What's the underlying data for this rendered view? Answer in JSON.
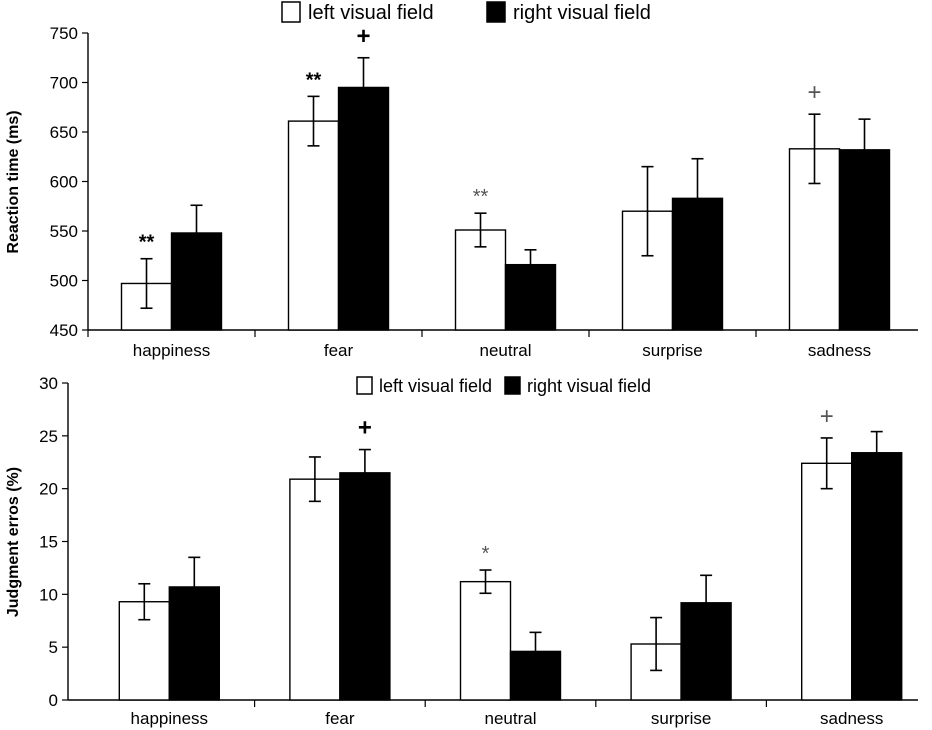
{
  "colors": {
    "left": "#ffffff",
    "right": "#000000",
    "stroke": "#000000",
    "annotation_dark": "#000000",
    "annotation_gray": "#555555"
  },
  "chart_data": [
    {
      "type": "bar",
      "categories": [
        "happiness",
        "fear",
        "neutral",
        "surprise",
        "sadness"
      ],
      "ylabel": "Reaction time (ms)",
      "ylim": [
        450,
        750
      ],
      "yticks": [
        450,
        500,
        550,
        600,
        650,
        700,
        750
      ],
      "legend": "top",
      "series": [
        {
          "name": "left visual field",
          "values": [
            497,
            661,
            551,
            570,
            633
          ],
          "errors": [
            25,
            25,
            17,
            45,
            35
          ]
        },
        {
          "name": "right visual field",
          "values": [
            548,
            695,
            516,
            583,
            632
          ],
          "errors": [
            28,
            30,
            15,
            40,
            31
          ]
        }
      ],
      "annotations": [
        {
          "category": 0,
          "series": 0,
          "text": "**",
          "tone": "dark"
        },
        {
          "category": 1,
          "series": 0,
          "text": "**",
          "tone": "dark"
        },
        {
          "category": 1,
          "series": 1,
          "text": "+",
          "tone": "dark"
        },
        {
          "category": 2,
          "series": 0,
          "text": "**",
          "tone": "gray"
        },
        {
          "category": 4,
          "series": 0,
          "text": "+",
          "tone": "gray"
        }
      ]
    },
    {
      "type": "bar",
      "categories": [
        "happiness",
        "fear",
        "neutral",
        "surprise",
        "sadness"
      ],
      "ylabel": "Judgment erros (%)",
      "ylim": [
        0,
        30
      ],
      "yticks": [
        0,
        5,
        10,
        15,
        20,
        25,
        30
      ],
      "legend": "top",
      "series": [
        {
          "name": "left visual field",
          "values": [
            9.3,
            20.9,
            11.2,
            5.3,
            22.4
          ],
          "errors": [
            1.7,
            2.1,
            1.1,
            2.5,
            2.4
          ]
        },
        {
          "name": "right visual field",
          "values": [
            10.7,
            21.5,
            4.6,
            9.2,
            23.4
          ],
          "errors": [
            2.8,
            2.2,
            1.8,
            2.6,
            2.0
          ]
        }
      ],
      "annotations": [
        {
          "category": 1,
          "series": 1,
          "text": "+",
          "tone": "dark"
        },
        {
          "category": 2,
          "series": 0,
          "text": "*",
          "tone": "gray"
        },
        {
          "category": 4,
          "series": 0,
          "text": "+",
          "tone": "gray"
        }
      ]
    }
  ]
}
